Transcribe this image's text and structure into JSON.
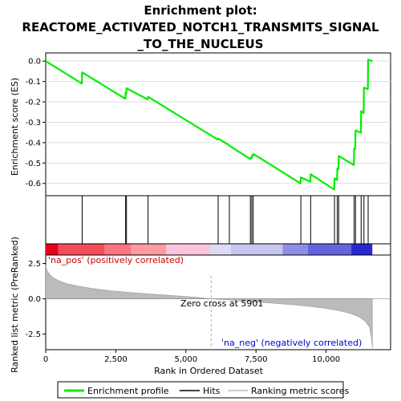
{
  "chart_data": {
    "type": "line",
    "title_lines": [
      "Enrichment plot:",
      "REACTOME_ACTIVATED_NOTCH1_TRANSMITS_SIGNAL",
      "_TO_THE_NUCLEUS"
    ],
    "xlabel": "Rank in Ordered Dataset",
    "ylabel_top": "Enrichment score (ES)",
    "ylabel_bottom": "Ranked list metric (PreRanked)",
    "xlim": [
      0,
      12300
    ],
    "x_ticks": [
      0,
      2500,
      5000,
      7500,
      10000
    ],
    "x_tick_labels": [
      "0",
      "2,500",
      "5,000",
      "7,500",
      "10,000"
    ],
    "es_ylim": [
      -0.66,
      0.04
    ],
    "es_ticks": [
      0.0,
      -0.1,
      -0.2,
      -0.3,
      -0.4,
      -0.5,
      -0.6
    ],
    "es_tick_labels": [
      "0.0",
      "-0.1",
      "-0.2",
      "-0.3",
      "-0.4",
      "-0.5",
      "-0.6"
    ],
    "metric_ylim": [
      -3.6,
      3.1
    ],
    "metric_ticks": [
      2.5,
      0.0,
      -2.5
    ],
    "metric_tick_labels": [
      "2.5",
      "0.0",
      "-2.5"
    ],
    "hits": [
      1300,
      2850,
      2880,
      3650,
      6150,
      6550,
      7300,
      7350,
      7400,
      9100,
      9450,
      10300,
      10400,
      10450,
      11000,
      11050,
      11250,
      11350,
      11500
    ],
    "enrichment_profile": {
      "name": "Enrichment profile",
      "x": [
        0,
        1290,
        1300,
        2840,
        2850,
        2870,
        2880,
        3640,
        3650,
        6140,
        6150,
        6540,
        6550,
        7290,
        7300,
        7340,
        7350,
        7390,
        7400,
        9090,
        9100,
        9440,
        9450,
        10290,
        10300,
        10390,
        10400,
        10440,
        10450,
        10990,
        11000,
        11040,
        11050,
        11240,
        11250,
        11340,
        11350,
        11490,
        11500,
        11650
      ],
      "y": [
        0.0,
        -0.11,
        -0.055,
        -0.185,
        -0.155,
        -0.162,
        -0.133,
        -0.188,
        -0.175,
        -0.385,
        -0.38,
        -0.412,
        -0.415,
        -0.48,
        -0.475,
        -0.477,
        -0.465,
        -0.465,
        -0.455,
        -0.6,
        -0.57,
        -0.592,
        -0.555,
        -0.63,
        -0.575,
        -0.583,
        -0.527,
        -0.53,
        -0.465,
        -0.51,
        -0.43,
        -0.43,
        -0.34,
        -0.352,
        -0.245,
        -0.255,
        -0.13,
        -0.138,
        0.007,
        0.0
      ]
    },
    "ranked_metric": {
      "x": [
        0,
        50,
        150,
        300,
        500,
        800,
        1200,
        1700,
        2300,
        3000,
        3800,
        4600,
        5400,
        5901,
        6500,
        7200,
        8000,
        8800,
        9500,
        10000,
        10500,
        10900,
        11200,
        11400,
        11550,
        11620,
        11650
      ],
      "y": [
        2.4,
        2.0,
        1.7,
        1.45,
        1.25,
        1.05,
        0.88,
        0.72,
        0.58,
        0.45,
        0.33,
        0.22,
        0.1,
        0.0,
        -0.08,
        -0.18,
        -0.3,
        -0.42,
        -0.55,
        -0.68,
        -0.85,
        -1.05,
        -1.3,
        -1.6,
        -2.0,
        -2.8,
        -3.5
      ]
    },
    "zero_cross": 5901,
    "zero_cross_label": "Zero cross at 5901",
    "na_pos_label": "'na_pos' (positively correlated)",
    "na_neg_label": "'na_neg' (negatively correlated)",
    "legend": [
      {
        "label": "Enrichment profile",
        "kind": "line",
        "color": "#00ee00"
      },
      {
        "label": "Hits",
        "kind": "line",
        "color": "#000000"
      },
      {
        "label": "Ranking metric scores",
        "kind": "line",
        "color": "#bbbbbb"
      }
    ],
    "colors": {
      "profile": "#00ee00",
      "hits": "#000000",
      "metric_fill": "#bbbbbb",
      "na_pos": "#cc0000",
      "na_neg": "#0000cc",
      "zero_line": "#aaaaaa"
    },
    "rank_bar": {
      "segments": [
        {
          "x0": 0,
          "x1": 450,
          "color": "#e8001a"
        },
        {
          "x0": 450,
          "x1": 2100,
          "color": "#f44c5a"
        },
        {
          "x0": 2100,
          "x1": 3050,
          "color": "#fb7480"
        },
        {
          "x0": 3050,
          "x1": 4300,
          "color": "#fe9aa2"
        },
        {
          "x0": 4300,
          "x1": 5850,
          "color": "#fbc4dc"
        },
        {
          "x0": 5850,
          "x1": 6600,
          "color": "#dcdcf6"
        },
        {
          "x0": 6600,
          "x1": 8450,
          "color": "#c6c6f2"
        },
        {
          "x0": 8450,
          "x1": 9350,
          "color": "#8e8ee8"
        },
        {
          "x0": 9350,
          "x1": 10900,
          "color": "#6464e0"
        },
        {
          "x0": 10900,
          "x1": 11650,
          "color": "#2828d0"
        }
      ]
    }
  }
}
